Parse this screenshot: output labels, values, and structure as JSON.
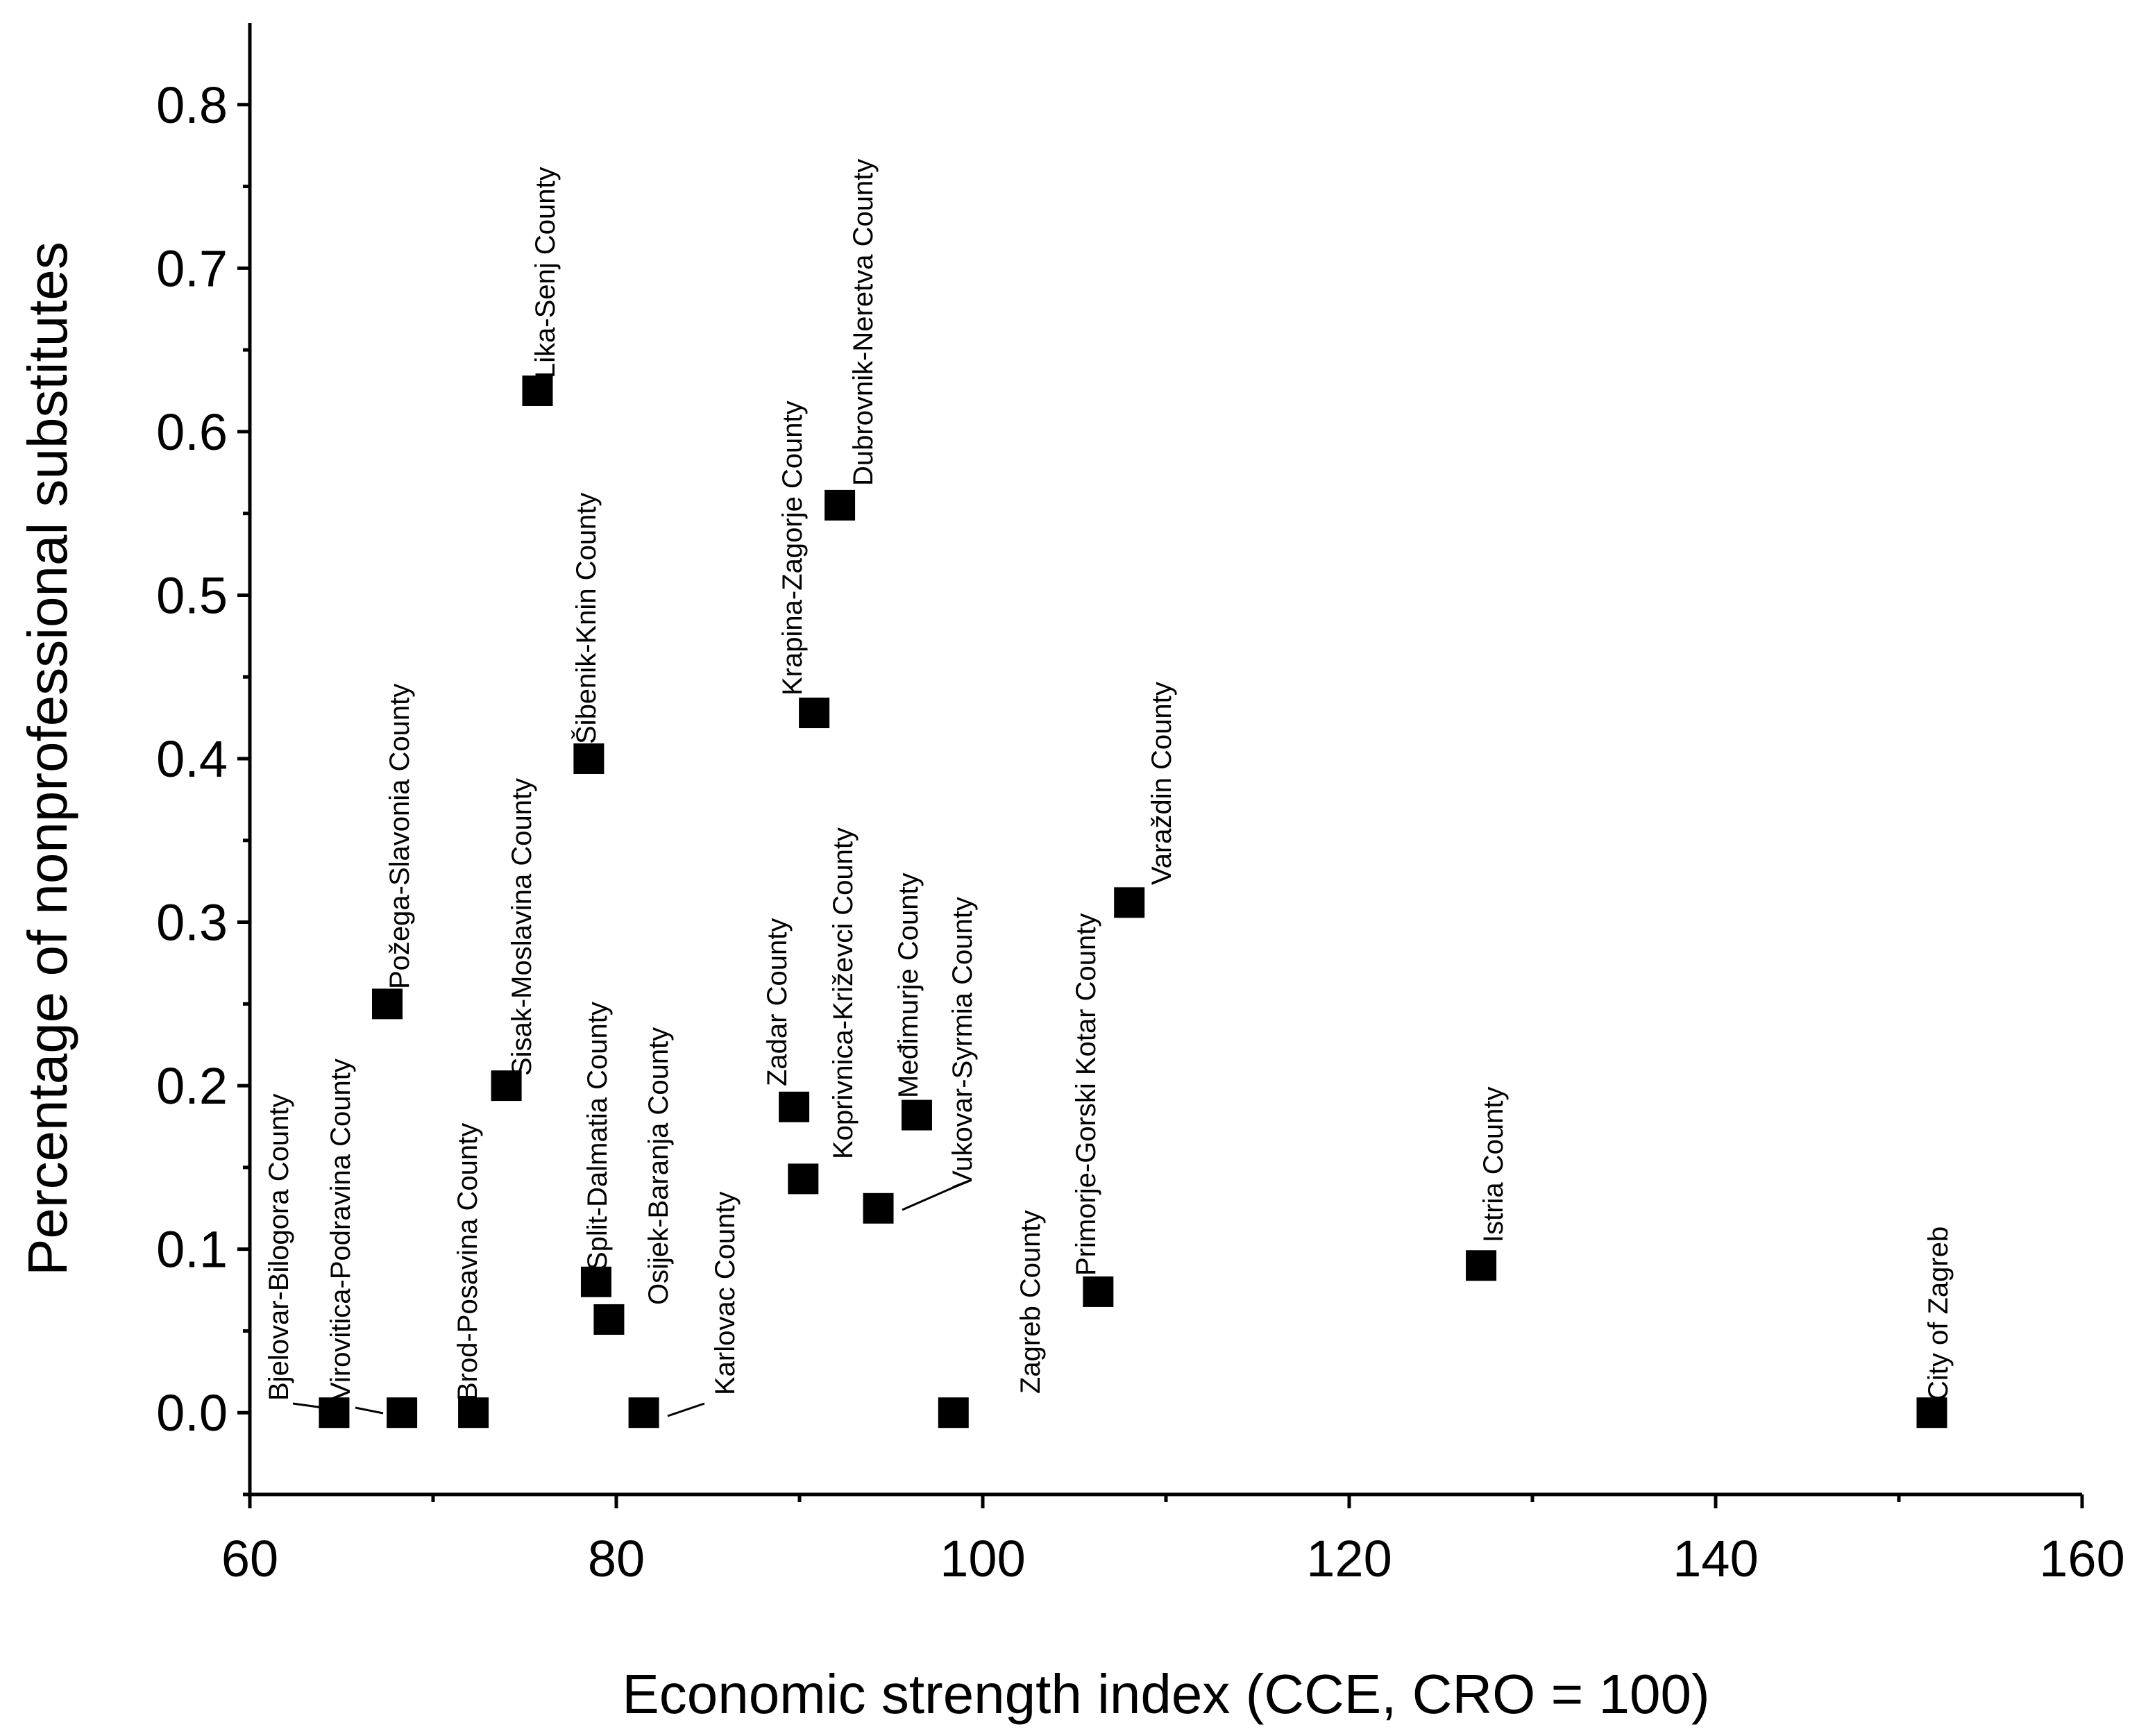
{
  "chart_data": {
    "type": "scatter",
    "xlabel": "Economic strength index (CCE, CRO = 100)",
    "ylabel": "Percentage of nonprofessional substitutes",
    "xlim": [
      60,
      160
    ],
    "ylim": [
      -0.05,
      0.85
    ],
    "x_ticks": [
      60,
      80,
      100,
      120,
      140,
      160
    ],
    "x_tick_labels": [
      "60",
      "80",
      "100",
      "120",
      "140",
      "160"
    ],
    "y_ticks": [
      0.0,
      0.1,
      0.2,
      0.3,
      0.4,
      0.5,
      0.6,
      0.7,
      0.8
    ],
    "y_tick_labels": [
      "0.0",
      "0.1",
      "0.2",
      "0.3",
      "0.4",
      "0.5",
      "0.6",
      "0.7",
      "0.8"
    ],
    "grid": false,
    "points": [
      {
        "label": "Bjelovar-Bilogora County",
        "x": 64.6,
        "y": 0.0
      },
      {
        "label": "Virovitica-Podravina County",
        "x": 68.3,
        "y": 0.0
      },
      {
        "label": "Požega-Slavonia County",
        "x": 67.5,
        "y": 0.25
      },
      {
        "label": "Brod-Posavina County",
        "x": 72.2,
        "y": 0.0
      },
      {
        "label": "Sisak-Moslavina County",
        "x": 74.0,
        "y": 0.2
      },
      {
        "label": "Lika-Senj County",
        "x": 75.7,
        "y": 0.625
      },
      {
        "label": "Šibenik-Knin County",
        "x": 78.5,
        "y": 0.4
      },
      {
        "label": "Split-Dalmatia County",
        "x": 78.9,
        "y": 0.08
      },
      {
        "label": "Osijek-Baranja County",
        "x": 79.6,
        "y": 0.057
      },
      {
        "label": "Karlovac County",
        "x": 81.5,
        "y": 0.0
      },
      {
        "label": "Zadar County",
        "x": 89.7,
        "y": 0.187
      },
      {
        "label": "Koprivnica-Križevci County",
        "x": 90.2,
        "y": 0.143
      },
      {
        "label": "Krapina-Zagorje County",
        "x": 90.8,
        "y": 0.428
      },
      {
        "label": "Dubrovnik-Neretva County",
        "x": 92.2,
        "y": 0.555
      },
      {
        "label": "Vukovar-Syrmia County",
        "x": 94.3,
        "y": 0.125
      },
      {
        "label": "Međimurje County",
        "x": 96.4,
        "y": 0.182
      },
      {
        "label": "Zagreb County",
        "x": 98.4,
        "y": 0.0
      },
      {
        "label": "Primorje-Gorski Kotar County",
        "x": 106.3,
        "y": 0.074
      },
      {
        "label": "Varaždin County",
        "x": 108.0,
        "y": 0.312
      },
      {
        "label": "Istria County",
        "x": 127.2,
        "y": 0.09
      },
      {
        "label": "City of Zagreb",
        "x": 151.8,
        "y": 0.0
      }
    ]
  }
}
